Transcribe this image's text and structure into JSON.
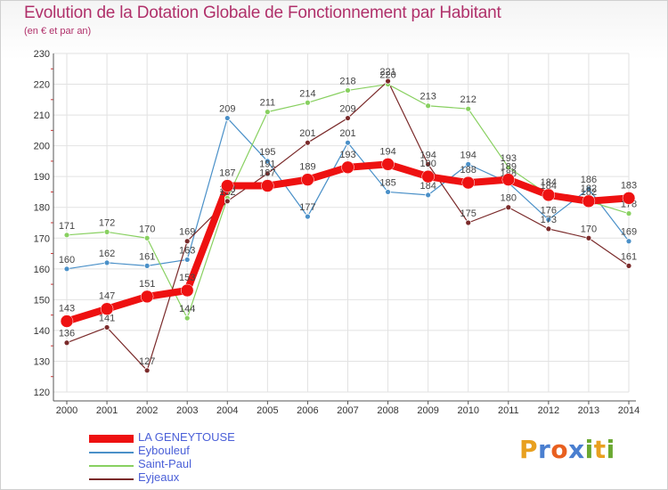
{
  "header": {
    "title": "Evolution de la Dotation Globale de Fonctionnement par Habitant",
    "subtitle": "(en € et par an)"
  },
  "brand": {
    "logo_letters": [
      "P",
      "r",
      "o",
      "x",
      "i",
      "t",
      "i"
    ],
    "logo_colors": [
      "#e8a020",
      "#4a7fd0",
      "#e86020",
      "#4a7fd0",
      "#6aa830",
      "#e8a020",
      "#6aa830"
    ]
  },
  "chart_data": {
    "type": "line",
    "title": "Evolution de la Dotation Globale de Fonctionnement par Habitant",
    "subtitle": "(en € et par an)",
    "xlabel": "",
    "ylabel": "",
    "x": [
      "2000",
      "2001",
      "2002",
      "2003",
      "2004",
      "2005",
      "2006",
      "2007",
      "2008",
      "2009",
      "2010",
      "2011",
      "2012",
      "2013",
      "2014"
    ],
    "ylim": [
      120,
      230
    ],
    "yticks": [
      120,
      130,
      140,
      150,
      160,
      170,
      180,
      190,
      200,
      210,
      220,
      230
    ],
    "grid": true,
    "legend_position": "bottom-left",
    "series": [
      {
        "name": "Eybouleuf",
        "color": "#4a90c8",
        "values": [
          160,
          162,
          161,
          163,
          209,
          195,
          177,
          201,
          185,
          184,
          194,
          188,
          176,
          186,
          169
        ],
        "labels": [
          "160",
          "162",
          "161",
          "163",
          "209",
          "195",
          "177",
          "201",
          "185",
          "184",
          "194",
          "188",
          "176",
          "186",
          "169"
        ]
      },
      {
        "name": "Saint-Paul",
        "color": "#88d060",
        "values": [
          171,
          172,
          170,
          144,
          183,
          211,
          214,
          218,
          220,
          213,
          212,
          193,
          184,
          182,
          178
        ],
        "labels": [
          "171",
          "172",
          "170",
          "144",
          "183",
          "211",
          "214",
          "218",
          "220",
          "213",
          "212",
          "193",
          "184",
          "182",
          "178"
        ]
      },
      {
        "name": "Eyjeaux",
        "color": "#7a2a2a",
        "values": [
          136,
          141,
          127,
          169,
          182,
          191,
          201,
          209,
          221,
          194,
          175,
          180,
          173,
          170,
          161
        ],
        "labels": [
          "136",
          "141",
          "127",
          "169",
          "182",
          "191",
          "201",
          "209",
          "221",
          "194",
          "175",
          "180",
          "173",
          "170",
          "161"
        ]
      },
      {
        "name": "LA GENEYTOUSE",
        "color": "#ee1111",
        "values": [
          143,
          147,
          151,
          153,
          187,
          187,
          189,
          193,
          194,
          190,
          188,
          189,
          184,
          182,
          183
        ],
        "labels": [
          "143",
          "147",
          "151",
          "153",
          "187",
          "187",
          "189",
          "193",
          "194",
          "190",
          "188",
          "189",
          "184",
          "182",
          "183"
        ]
      }
    ],
    "legend": [
      "LA GENEYTOUSE",
      "Eybouleuf",
      "Saint-Paul",
      "Eyjeaux"
    ]
  }
}
